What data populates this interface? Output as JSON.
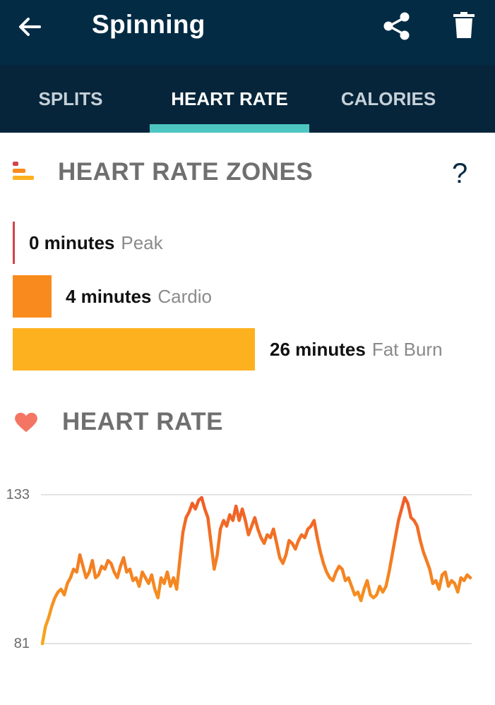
{
  "appbar": {
    "title": "Spinning",
    "back_icon": "back-arrow-icon",
    "share_icon": "share-icon",
    "delete_icon": "trash-icon"
  },
  "tabs": [
    {
      "label": "SPLITS",
      "active": false
    },
    {
      "label": "HEART RATE",
      "active": true
    },
    {
      "label": "CALORIES",
      "active": false
    }
  ],
  "zones_section": {
    "title": "HEART RATE ZONES",
    "help_label": "?",
    "zones": [
      {
        "minutes": "0 minutes",
        "name": "Peak",
        "color": "#d4414b"
      },
      {
        "minutes": "4 minutes",
        "name": "Cardio",
        "color": "#f98b1e"
      },
      {
        "minutes": "26 minutes",
        "name": "Fat Burn",
        "color": "#fdb11f"
      }
    ]
  },
  "heart_rate_section": {
    "title": "HEART RATE"
  },
  "colors": {
    "appbar": "#042b44",
    "tabs": "#06253a",
    "accent": "#4dc6c2",
    "heart": "#f47563",
    "line_low": "#f7a81d",
    "line_high": "#f05a28"
  },
  "chart_data": {
    "type": "line",
    "title": "",
    "xlabel": "",
    "ylabel": "",
    "ylim": [
      81,
      133
    ],
    "yticks": [
      81,
      133
    ],
    "grid": true,
    "series": [
      {
        "values": [
          81,
          87,
          90,
          94,
          97,
          99,
          100,
          98,
          102,
          104,
          107,
          106,
          112,
          108,
          104,
          106,
          110,
          104,
          105,
          108,
          107,
          110,
          109,
          106,
          104,
          108,
          111,
          106,
          107,
          103,
          104,
          101,
          106,
          104,
          102,
          105,
          100,
          97,
          104,
          102,
          106,
          101,
          104,
          100,
          110,
          120,
          125,
          127,
          130,
          128,
          131,
          132,
          128,
          125,
          116,
          107,
          112,
          121,
          124,
          122,
          126,
          124,
          129,
          124,
          128,
          124,
          119,
          122,
          125,
          121,
          118,
          116,
          119,
          118,
          121,
          116,
          111,
          109,
          112,
          117,
          116,
          114,
          117,
          119,
          118,
          121,
          122,
          124,
          118,
          113,
          109,
          106,
          104,
          103,
          106,
          108,
          107,
          103,
          104,
          101,
          98,
          99,
          96,
          100,
          103,
          98,
          97,
          98,
          101,
          99,
          101,
          106,
          112,
          118,
          124,
          128,
          132,
          130,
          125,
          124,
          122,
          117,
          113,
          110,
          107,
          102,
          103,
          100,
          105,
          106,
          101,
          103,
          102,
          99,
          104,
          103,
          105,
          104
        ]
      }
    ]
  }
}
